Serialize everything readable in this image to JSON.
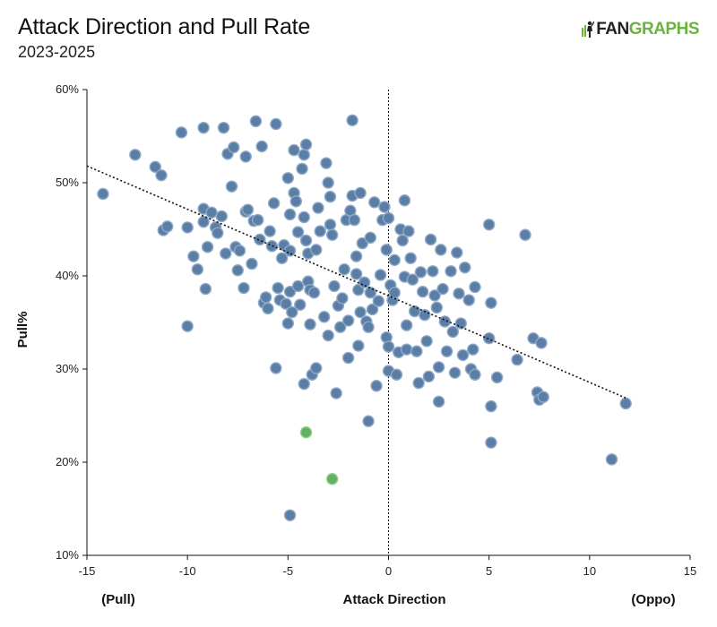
{
  "header": {
    "title": "Attack Direction and Pull Rate",
    "subtitle": "2023-2025",
    "logo_fan": "FAN",
    "logo_graphs": "GRAPHS"
  },
  "colors": {
    "point_fill": "#5b7ea6",
    "point_stroke": "#8fa9c6",
    "highlight_fill": "#62b063",
    "highlight_stroke": "#8fd18c",
    "trend_line": "#111111",
    "axis": "#111111",
    "logo_green": "#6ab43e"
  },
  "chart_data": {
    "type": "scatter",
    "title": "Attack Direction and Pull Rate",
    "subtitle": "2023-2025",
    "xlabel": "Attack Direction",
    "xlabel_left": "(Pull)",
    "xlabel_right": "(Oppo)",
    "ylabel": "Pull%",
    "xlim": [
      -15,
      15
    ],
    "ylim": [
      10,
      60
    ],
    "xticks": [
      -15,
      -10,
      -5,
      0,
      5,
      10,
      15
    ],
    "yticks": [
      10,
      20,
      30,
      40,
      50,
      60
    ],
    "ytick_format": "percent",
    "grid": false,
    "reference_line_x": 0,
    "trendline": {
      "x": [
        -15,
        11.9
      ],
      "y": [
        51.8,
        26.8
      ]
    },
    "points": [
      [
        -14.2,
        48.8
      ],
      [
        -12.6,
        53.0
      ],
      [
        -11.6,
        51.7
      ],
      [
        -11.3,
        50.8
      ],
      [
        -11.2,
        44.9
      ],
      [
        -11.0,
        45.3
      ],
      [
        -10.3,
        55.4
      ],
      [
        -10.0,
        45.2
      ],
      [
        -9.7,
        42.1
      ],
      [
        -9.5,
        40.7
      ],
      [
        -9.2,
        55.9
      ],
      [
        -9.2,
        47.2
      ],
      [
        -9.2,
        45.8
      ],
      [
        -9.1,
        38.6
      ],
      [
        -9.0,
        43.1
      ],
      [
        -8.8,
        46.8
      ],
      [
        -8.6,
        45.2
      ],
      [
        -8.5,
        44.6
      ],
      [
        -8.3,
        46.4
      ],
      [
        -8.2,
        55.9
      ],
      [
        -8.1,
        42.4
      ],
      [
        -8.0,
        53.1
      ],
      [
        -7.8,
        49.6
      ],
      [
        -7.7,
        53.8
      ],
      [
        -7.6,
        43.1
      ],
      [
        -7.5,
        40.6
      ],
      [
        -7.4,
        42.7
      ],
      [
        -7.2,
        38.7
      ],
      [
        -7.1,
        52.8
      ],
      [
        -7.1,
        46.9
      ],
      [
        -7.0,
        47.1
      ],
      [
        -6.8,
        41.3
      ],
      [
        -6.7,
        45.9
      ],
      [
        -6.6,
        56.6
      ],
      [
        -6.5,
        46.0
      ],
      [
        -6.4,
        43.9
      ],
      [
        -6.3,
        53.9
      ],
      [
        -6.2,
        37.1
      ],
      [
        -6.1,
        37.7
      ],
      [
        -6.0,
        36.5
      ],
      [
        -5.9,
        44.8
      ],
      [
        -5.8,
        43.2
      ],
      [
        -5.7,
        47.8
      ],
      [
        -5.6,
        56.3
      ],
      [
        -5.6,
        30.1
      ],
      [
        -5.5,
        38.7
      ],
      [
        -5.4,
        37.4
      ],
      [
        -5.3,
        41.9
      ],
      [
        -5.2,
        43.3
      ],
      [
        -5.1,
        37.0
      ],
      [
        -5.0,
        34.9
      ],
      [
        -5.0,
        50.5
      ],
      [
        -4.9,
        46.6
      ],
      [
        -4.9,
        42.7
      ],
      [
        -4.9,
        38.3
      ],
      [
        -4.8,
        36.1
      ],
      [
        -4.7,
        53.5
      ],
      [
        -4.7,
        48.9
      ],
      [
        -4.6,
        48.0
      ],
      [
        -4.5,
        44.7
      ],
      [
        -4.5,
        38.9
      ],
      [
        -4.4,
        36.9
      ],
      [
        -4.3,
        51.5
      ],
      [
        -4.2,
        53.0
      ],
      [
        -4.2,
        46.3
      ],
      [
        -4.2,
        28.4
      ],
      [
        -4.1,
        54.1
      ],
      [
        -4.1,
        43.8
      ],
      [
        -4.0,
        42.4
      ],
      [
        -4.0,
        39.4
      ],
      [
        -3.9,
        38.5
      ],
      [
        -3.9,
        34.8
      ],
      [
        -3.8,
        29.4
      ],
      [
        -3.7,
        38.2
      ],
      [
        -3.6,
        30.1
      ],
      [
        -3.6,
        42.8
      ],
      [
        -3.5,
        47.3
      ],
      [
        -3.4,
        44.8
      ],
      [
        -3.2,
        35.6
      ],
      [
        -3.1,
        52.1
      ],
      [
        -3.0,
        33.6
      ],
      [
        -3.0,
        50.0
      ],
      [
        -2.9,
        48.5
      ],
      [
        -2.9,
        45.5
      ],
      [
        -2.8,
        44.4
      ],
      [
        -2.7,
        38.9
      ],
      [
        -2.6,
        27.4
      ],
      [
        -2.5,
        36.8
      ],
      [
        -2.4,
        34.5
      ],
      [
        -2.3,
        37.6
      ],
      [
        -2.2,
        40.7
      ],
      [
        -2.1,
        46.0
      ],
      [
        -2.0,
        31.2
      ],
      [
        -2.0,
        35.2
      ],
      [
        -1.9,
        47.0
      ],
      [
        -1.8,
        56.7
      ],
      [
        -1.8,
        48.6
      ],
      [
        -1.7,
        46.0
      ],
      [
        -1.6,
        42.1
      ],
      [
        -1.6,
        40.2
      ],
      [
        -1.5,
        32.5
      ],
      [
        -1.5,
        38.5
      ],
      [
        -1.4,
        48.9
      ],
      [
        -1.4,
        36.1
      ],
      [
        -1.3,
        43.5
      ],
      [
        -1.2,
        39.3
      ],
      [
        -1.1,
        35.1
      ],
      [
        -1.0,
        34.5
      ],
      [
        -1.0,
        24.4
      ],
      [
        -0.9,
        44.1
      ],
      [
        -0.9,
        38.2
      ],
      [
        -0.8,
        36.4
      ],
      [
        -0.7,
        47.9
      ],
      [
        -0.6,
        28.2
      ],
      [
        -0.5,
        37.3
      ],
      [
        -0.4,
        40.1
      ],
      [
        -0.3,
        46.0
      ],
      [
        -0.2,
        47.4
      ],
      [
        -0.1,
        42.8
      ],
      [
        -0.1,
        33.4
      ],
      [
        0.0,
        46.2
      ],
      [
        0.0,
        32.4
      ],
      [
        0.0,
        29.8
      ],
      [
        0.1,
        39.0
      ],
      [
        0.2,
        37.4
      ],
      [
        0.3,
        38.2
      ],
      [
        0.3,
        41.7
      ],
      [
        0.4,
        29.4
      ],
      [
        0.5,
        31.8
      ],
      [
        0.6,
        45.0
      ],
      [
        0.7,
        43.8
      ],
      [
        0.8,
        48.1
      ],
      [
        0.8,
        39.9
      ],
      [
        0.9,
        34.7
      ],
      [
        0.9,
        32.1
      ],
      [
        1.0,
        44.8
      ],
      [
        1.1,
        41.9
      ],
      [
        1.2,
        39.6
      ],
      [
        1.3,
        36.2
      ],
      [
        1.4,
        31.9
      ],
      [
        1.5,
        28.5
      ],
      [
        1.6,
        40.4
      ],
      [
        1.7,
        38.3
      ],
      [
        1.8,
        35.8
      ],
      [
        1.9,
        33.0
      ],
      [
        2.0,
        29.2
      ],
      [
        2.1,
        43.9
      ],
      [
        2.2,
        40.5
      ],
      [
        2.3,
        37.9
      ],
      [
        2.4,
        36.6
      ],
      [
        2.5,
        30.2
      ],
      [
        2.5,
        26.5
      ],
      [
        2.6,
        42.8
      ],
      [
        2.7,
        38.6
      ],
      [
        2.8,
        35.1
      ],
      [
        2.9,
        31.9
      ],
      [
        3.1,
        40.5
      ],
      [
        3.2,
        34.0
      ],
      [
        3.3,
        29.6
      ],
      [
        3.4,
        42.5
      ],
      [
        3.5,
        38.1
      ],
      [
        3.6,
        34.9
      ],
      [
        3.7,
        31.5
      ],
      [
        3.8,
        40.9
      ],
      [
        4.0,
        37.4
      ],
      [
        4.1,
        30.0
      ],
      [
        4.2,
        32.1
      ],
      [
        4.3,
        38.8
      ],
      [
        4.3,
        29.4
      ],
      [
        5.0,
        33.3
      ],
      [
        5.0,
        45.5
      ],
      [
        5.1,
        37.1
      ],
      [
        5.1,
        26.0
      ],
      [
        5.1,
        22.1
      ],
      [
        5.4,
        29.1
      ],
      [
        6.4,
        31.0
      ],
      [
        6.8,
        44.4
      ],
      [
        7.2,
        33.3
      ],
      [
        7.4,
        27.5
      ],
      [
        7.5,
        26.7
      ],
      [
        7.6,
        32.8
      ],
      [
        7.7,
        27.0
      ],
      [
        11.1,
        20.3
      ],
      [
        11.8,
        26.3
      ],
      [
        -10.0,
        34.6
      ],
      [
        -4.9,
        14.3
      ]
    ],
    "highlighted_points": [
      [
        -4.1,
        23.2
      ],
      [
        -2.8,
        18.2
      ]
    ]
  }
}
